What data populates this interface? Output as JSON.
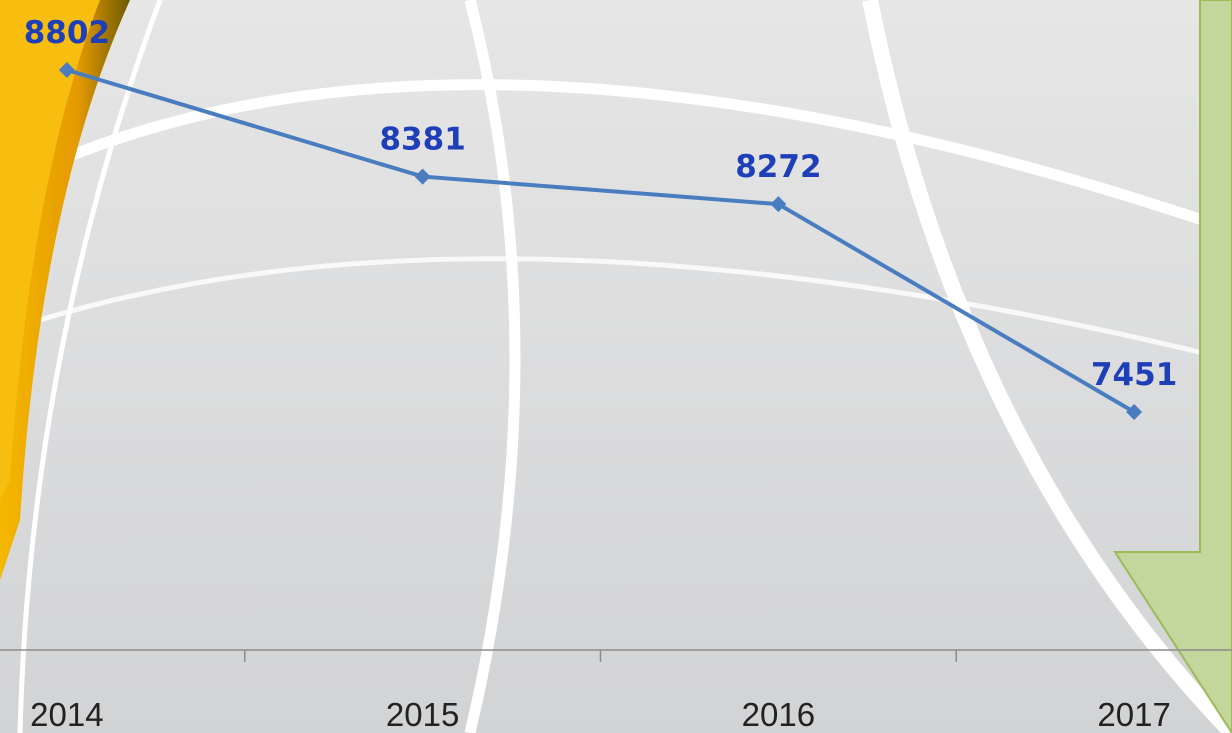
{
  "chart_data": {
    "type": "line",
    "categories": [
      "2014",
      "2015",
      "2016",
      "2017"
    ],
    "series": [
      {
        "color": "#4a7dc0",
        "values": [
          8802,
          8381,
          8272,
          7451
        ]
      }
    ]
  }
}
